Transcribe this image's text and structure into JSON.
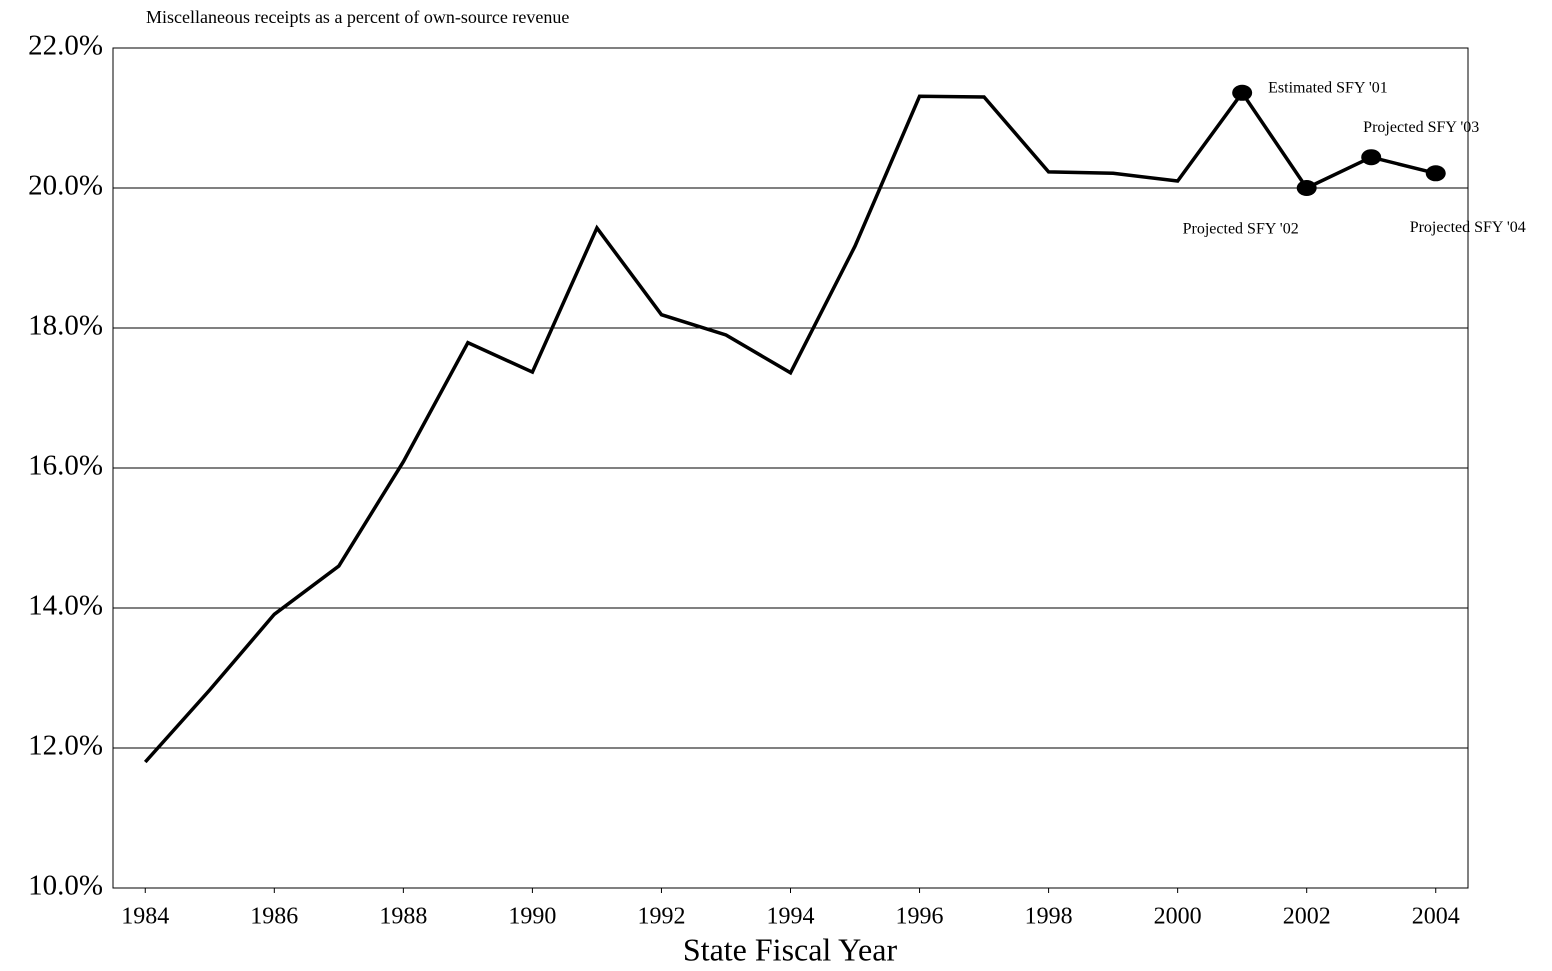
{
  "chart_data": {
    "type": "line",
    "title": "Miscellaneous receipts as a percent of own-source revenue",
    "x_label": "State Fiscal Year",
    "x": [
      1984,
      1985,
      1986,
      1987,
      1988,
      1989,
      1990,
      1991,
      1992,
      1993,
      1994,
      1995,
      1996,
      1997,
      1998,
      1999,
      2000,
      2001,
      2002,
      2003,
      2004
    ],
    "series": [
      {
        "color": "#000000",
        "values": [
          11.8,
          12.83,
          13.91,
          14.6,
          16.09,
          17.79,
          17.37,
          19.43,
          18.19,
          17.9,
          17.36,
          19.17,
          21.31,
          21.3,
          20.23,
          20.21,
          20.1,
          21.36,
          20.0,
          20.44,
          20.21
        ]
      }
    ],
    "xlim": [
      1983.5,
      2004.5
    ],
    "xticks": [
      1984,
      1986,
      1988,
      1990,
      1992,
      1994,
      1996,
      1998,
      2000,
      2002,
      2004
    ],
    "ylim": [
      10,
      22
    ],
    "yticks": [
      {
        "value": 10,
        "label": "10.0%"
      },
      {
        "value": 12,
        "label": "12.0%"
      },
      {
        "value": 14,
        "label": "14.0%"
      },
      {
        "value": 16,
        "label": "16.0%"
      },
      {
        "value": 18,
        "label": "18.0%"
      },
      {
        "value": 20,
        "label": "20.0%"
      },
      {
        "value": 22,
        "label": "22.0%"
      }
    ],
    "grid": true,
    "annotations": [
      {
        "text": "Estimated SFY '01",
        "x": 2001
      },
      {
        "text": "Projected SFY '02",
        "x": 2002
      },
      {
        "text": "Projected SFY '03",
        "x": 2003
      },
      {
        "text": "Projected SFY '04",
        "x": 2004
      }
    ]
  }
}
